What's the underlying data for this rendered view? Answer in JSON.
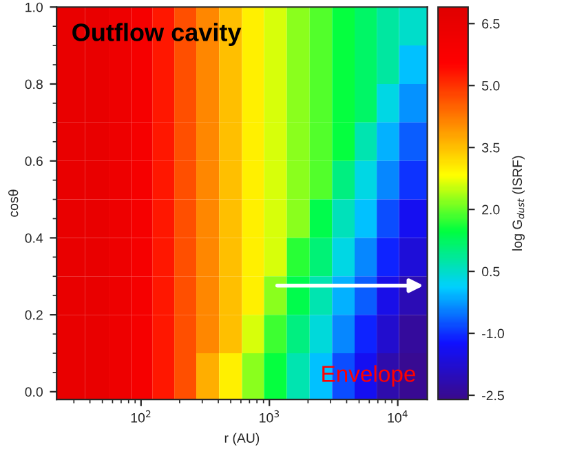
{
  "chart_data": {
    "type": "heatmap",
    "xlabel": "r (AU)",
    "ylabel": "cosθ",
    "clabel": "log G$_{dust}$ (ISRF)",
    "annotations": [
      "Outflow cavity",
      "Envelope"
    ],
    "log": "x",
    "x": [
      30,
      45,
      70,
      100,
      150,
      220,
      330,
      500,
      750,
      1100,
      1700,
      2500,
      3800,
      5600,
      8400,
      12500
    ],
    "y": [
      0.95,
      0.85,
      0.75,
      0.65,
      0.55,
      0.45,
      0.35,
      0.25,
      0.15,
      0.05
    ],
    "xlim": [
      22,
      17000
    ],
    "xticks": [
      {
        "value": 100,
        "label": "10$^{2}$"
      },
      {
        "value": 1000,
        "label": "10$^{3}$"
      },
      {
        "value": 10000,
        "label": "10$^{4}$"
      }
    ],
    "ylim": [
      -0.02,
      1.0
    ],
    "yticks": [
      {
        "value": 0,
        "label": "0.0"
      },
      0.2,
      0.4,
      0.6,
      0.8,
      {
        "value": 1,
        "label": "1.0"
      }
    ],
    "clim": [
      -2.6,
      6.9
    ],
    "cticks": [
      6.5,
      {
        "value": 5,
        "label": "5.0"
      },
      3.5,
      {
        "value": 2,
        "label": "2.0"
      },
      0.5,
      {
        "value": -1,
        "label": "-1.0"
      },
      -2.5
    ],
    "cells": [
      [
        6.5,
        6.5,
        6.3,
        5.9,
        5.3,
        4.7,
        4.1,
        3.5,
        3.0,
        2.6,
        2.2,
        1.9,
        1.5,
        1.2,
        0.8,
        0.5
      ],
      [
        6.5,
        6.5,
        6.3,
        5.9,
        5.3,
        4.7,
        4.1,
        3.5,
        3.0,
        2.6,
        2.2,
        1.9,
        1.5,
        1.2,
        0.8,
        0.0
      ],
      [
        6.5,
        6.5,
        6.3,
        5.9,
        5.3,
        4.7,
        4.1,
        3.5,
        3.0,
        2.6,
        2.2,
        1.9,
        1.5,
        1.2,
        0.3,
        -0.3
      ],
      [
        6.5,
        6.5,
        6.3,
        5.9,
        5.3,
        4.7,
        4.1,
        3.5,
        3.0,
        2.6,
        2.2,
        1.9,
        1.5,
        0.7,
        -0.1,
        -0.7
      ],
      [
        6.5,
        6.5,
        6.3,
        5.9,
        5.3,
        4.7,
        4.1,
        3.5,
        3.0,
        2.6,
        2.2,
        1.9,
        1.0,
        0.3,
        -0.4,
        -1.0
      ],
      [
        6.5,
        6.5,
        6.3,
        5.9,
        5.3,
        4.7,
        4.1,
        3.5,
        3.0,
        2.6,
        2.2,
        1.4,
        0.6,
        0.0,
        -0.8,
        -1.4
      ],
      [
        6.5,
        6.5,
        6.3,
        5.9,
        5.3,
        4.7,
        4.1,
        3.5,
        3.0,
        2.6,
        1.7,
        1.1,
        0.3,
        -0.4,
        -1.1,
        -1.7
      ],
      [
        6.5,
        6.5,
        6.3,
        5.9,
        5.3,
        4.7,
        4.1,
        3.5,
        3.0,
        2.2,
        1.4,
        0.7,
        -0.1,
        -0.7,
        -1.5,
        -2.1
      ],
      [
        6.5,
        6.5,
        6.3,
        5.9,
        5.3,
        4.7,
        4.1,
        3.5,
        2.6,
        1.8,
        1.0,
        0.4,
        -0.4,
        -1.1,
        -1.8,
        -2.4
      ],
      [
        6.5,
        6.5,
        6.3,
        5.9,
        5.3,
        4.7,
        3.7,
        3.0,
        2.2,
        1.5,
        0.7,
        0.0,
        -0.8,
        -1.4,
        -2.2,
        -2.5
      ]
    ]
  }
}
